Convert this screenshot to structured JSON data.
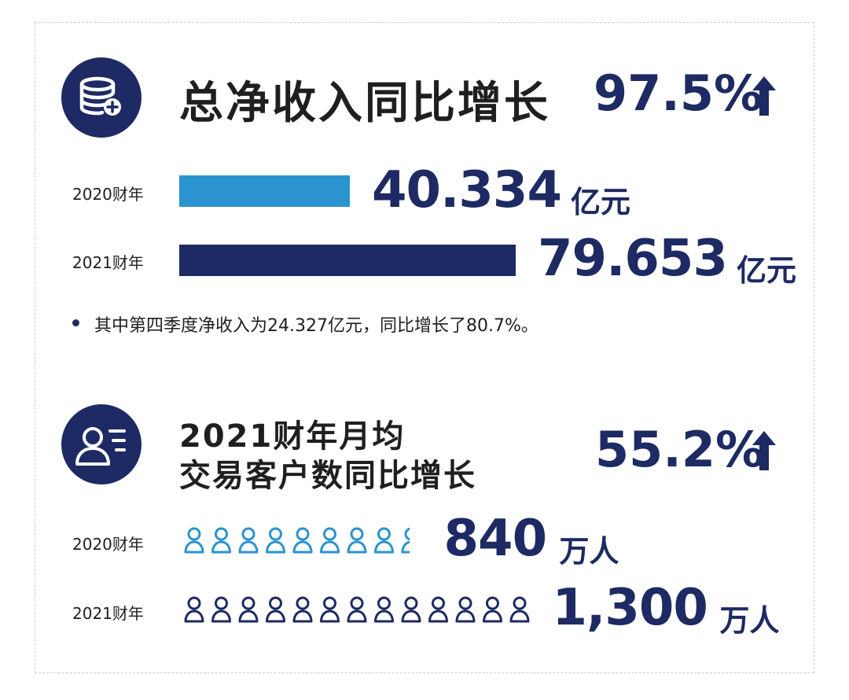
{
  "revenue": {
    "title": "总净收入同比增长",
    "growth": "97.5%",
    "unit": "亿元",
    "note": "其中第四季度净收入为24.327亿元，同比增长了80.7%。"
  },
  "customers": {
    "title_line1": "2021财年月均",
    "title_line2": "交易客户数同比增长",
    "growth": "55.2%",
    "unit": "万人"
  },
  "colors": {
    "navy": "#1d2a63",
    "light_blue": "#2b93cf",
    "text": "#1f1f1f"
  },
  "icons": {
    "revenue_icon": "database-plus-icon",
    "customers_icon": "user-card-icon",
    "arrow": "up-arrow-icon",
    "person": "person-icon"
  },
  "chart_data": [
    {
      "type": "bar",
      "title": "总净收入同比增长",
      "categories": [
        "2020财年",
        "2021财年"
      ],
      "values": [
        40.334,
        79.653
      ],
      "value_labels": [
        "40.334",
        "79.653"
      ],
      "unit": "亿元",
      "bar_colors": [
        "#2b93cf",
        "#1d2a63"
      ]
    },
    {
      "type": "bar",
      "title": "2021财年月均交易客户数同比增长",
      "categories": [
        "2020财年",
        "2021财年"
      ],
      "values": [
        840,
        1300
      ],
      "value_labels": [
        "840",
        "1,300"
      ],
      "unit": "万人",
      "bar_colors": [
        "#2b93cf",
        "#1d2a63"
      ],
      "pictogram_units_per_icon": 100
    }
  ]
}
